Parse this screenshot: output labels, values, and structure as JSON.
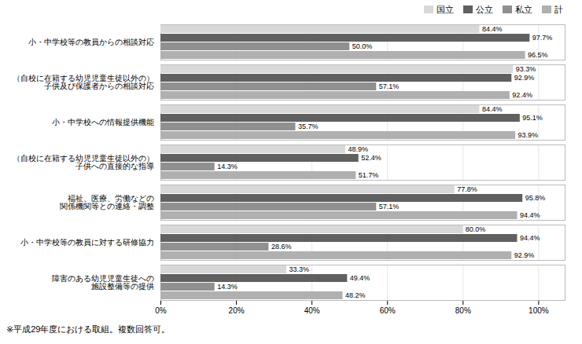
{
  "chart_data": {
    "type": "bar",
    "orientation": "horizontal",
    "categories": [
      "小・中学校等の教員からの相談対応",
      "（自校に在籍する幼児児童生徒以外の）\n子供及び保護者からの相談対応",
      "小・中学校への情報提供機能",
      "（自校に在籍する幼児児童生徒以外の）\n子供への直接的な指導",
      "福祉、医療、労働などの\n関係機関等との連絡・調整",
      "小・中学校等の教員に対する研修協力",
      "障害のある幼児児童生徒への\n施設整備等の提供"
    ],
    "series": [
      {
        "name": "国立",
        "color": "#d8d8d8",
        "values": [
          84.4,
          93.3,
          84.4,
          48.9,
          77.8,
          80.0,
          33.3
        ],
        "value_labels": [
          "84.4%",
          "93.3%",
          "84.4%",
          "48.9%",
          "77.8%",
          "80.0%",
          "33.3%"
        ]
      },
      {
        "name": "公立",
        "color": "#606060",
        "values": [
          97.7,
          92.9,
          95.1,
          52.4,
          95.8,
          94.4,
          49.4
        ],
        "value_labels": [
          "97.7%",
          "92.9%",
          "95.1%",
          "52.4%",
          "95.8%",
          "94.4%",
          "49.4%"
        ]
      },
      {
        "name": "私立",
        "color": "#909090",
        "values": [
          50.0,
          57.1,
          35.7,
          14.3,
          57.1,
          28.6,
          14.3
        ],
        "value_labels": [
          "50.0%",
          "57.1%",
          "35.7%",
          "14.3%",
          "57.1%",
          "28.6%",
          "14.3%"
        ]
      },
      {
        "name": "計",
        "color": "#b0b0b0",
        "values": [
          96.5,
          92.4,
          93.9,
          51.7,
          94.4,
          92.9,
          48.2
        ],
        "value_labels": [
          "96.5%",
          "92.4%",
          "93.9%",
          "51.7%",
          "94.4%",
          "92.9%",
          "48.2%"
        ]
      }
    ],
    "xlim": [
      0,
      107
    ],
    "xticks": [
      {
        "value": 0,
        "label": "0%"
      },
      {
        "value": 20,
        "label": "20%"
      },
      {
        "value": 40,
        "label": "40%"
      },
      {
        "value": 60,
        "label": "60%"
      },
      {
        "value": 80,
        "label": "80%"
      },
      {
        "value": 100,
        "label": "100%"
      }
    ],
    "grid": true,
    "legend": "upper right",
    "data_labels": true,
    "annotations": [
      "※平成29年度における取組。複数回答可。"
    ]
  }
}
